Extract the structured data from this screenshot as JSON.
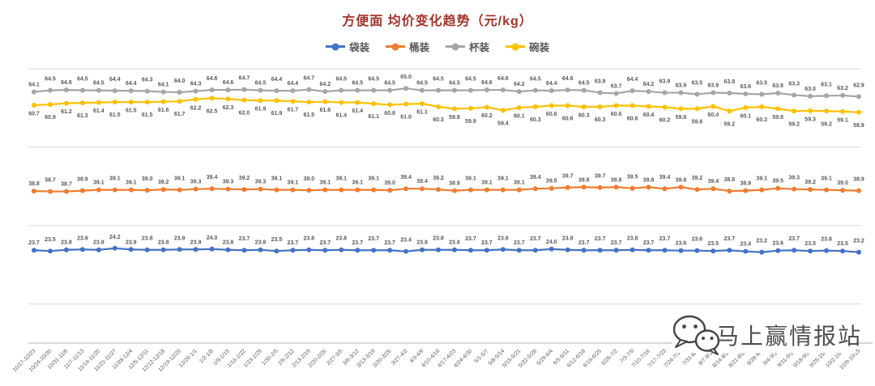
{
  "title": "方便面 均价变化趋势（元/kg）",
  "watermark": "马上赢情报站",
  "colors": {
    "title": "#A3342C",
    "data_label": "#595959",
    "gridline": "#D9D9D9",
    "axis": "#BFBFBF",
    "x_label": "#595959",
    "watermark_text": "#4F4F4F",
    "watermark_icon": "#454545"
  },
  "chart_data": {
    "type": "line",
    "title": "方便面 均价变化趋势（元/kg）",
    "ylabel": "元/kg",
    "ylim": [
      0,
      75
    ],
    "gridline_values": [
      10,
      30,
      50,
      70
    ],
    "grid": true,
    "legend_position": "top",
    "x": [
      "10/17-10/23",
      "10/24-10/30",
      "10/31-11/6",
      "11/7-11/13",
      "11/14-11/20",
      "11/21-11/27",
      "11/28-12/4",
      "12/5-12/11",
      "12/12-12/18",
      "12/19-12/25",
      "12/26-1/1",
      "1/2-1/8",
      "1/9-1/15",
      "1/16-1/22",
      "1/23-1/29",
      "1/30-2/5",
      "2/6-2/12",
      "2/13-2/19",
      "2/20-2/26",
      "2/27-3/5",
      "3/6-3/12",
      "3/13-3/19",
      "3/20-3/26",
      "3/27-4/2",
      "4/3-4/9",
      "4/10-4/16",
      "4/17-4/23",
      "4/24-4/30",
      "5/1-5/7",
      "5/8-5/14",
      "5/15-5/21",
      "5/22-5/28",
      "5/29-6/4",
      "6/5-6/11",
      "6/12-6/18",
      "6/19-6/25",
      "6/26-7/2",
      "7/3-7/9",
      "7/10-7/16",
      "7/17-7/23",
      "7/24-7/30",
      "7/31-8/6",
      "8/7-8/13",
      "8/14-8/20",
      "8/21-8/27",
      "8/28-9/3",
      "9/4-9/10",
      "9/11-9/17",
      "9/18-9/24",
      "9/25-10/1",
      "10/2-10/8",
      "10/9-10/15"
    ],
    "series": [
      {
        "name": "袋装",
        "color": "#4472C4",
        "label_position": "above",
        "values": [
          23.7,
          23.5,
          23.8,
          23.9,
          23.8,
          24.2,
          23.9,
          23.8,
          23.8,
          23.9,
          23.9,
          24.0,
          23.8,
          23.7,
          23.8,
          23.5,
          23.7,
          23.8,
          23.7,
          23.8,
          23.7,
          23.7,
          23.7,
          23.4,
          23.8,
          23.8,
          23.8,
          23.7,
          23.7,
          23.9,
          23.7,
          23.7,
          24.0,
          23.8,
          23.7,
          23.7,
          23.7,
          23.8,
          23.7,
          23.7,
          23.6,
          23.6,
          23.5,
          23.7,
          23.4,
          23.2,
          23.6,
          23.7,
          23.5,
          23.6,
          23.5,
          23.2
        ]
      },
      {
        "name": "桶装",
        "color": "#ED7D31",
        "label_position": "above",
        "values": [
          38.8,
          38.7,
          38.7,
          38.9,
          39.1,
          39.1,
          39.1,
          39.0,
          39.2,
          39.1,
          39.3,
          39.4,
          39.3,
          39.2,
          39.3,
          39.1,
          39.1,
          39.0,
          39.1,
          39.1,
          39.1,
          39.1,
          39.0,
          39.4,
          39.4,
          39.2,
          38.9,
          39.1,
          39.1,
          39.1,
          39.1,
          39.4,
          39.5,
          39.7,
          39.8,
          39.7,
          39.8,
          39.5,
          39.8,
          39.4,
          39.8,
          39.2,
          39.4,
          38.8,
          38.9,
          39.1,
          39.5,
          39.3,
          39.2,
          39.1,
          39.0,
          38.9
        ]
      },
      {
        "name": "杯装",
        "color": "#A5A5A5",
        "label_position": "above",
        "values": [
          64.1,
          64.5,
          64.6,
          64.5,
          64.5,
          64.4,
          64.4,
          64.3,
          64.1,
          64.0,
          64.3,
          64.6,
          64.6,
          64.7,
          64.5,
          64.4,
          64.4,
          64.7,
          64.2,
          64.5,
          64.5,
          64.5,
          64.5,
          65.0,
          64.5,
          64.5,
          64.5,
          64.5,
          64.6,
          64.6,
          64.2,
          64.5,
          64.4,
          64.6,
          64.5,
          63.9,
          63.7,
          64.4,
          64.2,
          63.9,
          63.9,
          63.5,
          63.9,
          63.8,
          63.6,
          63.5,
          63.8,
          63.3,
          63.0,
          63.1,
          63.2,
          62.9
        ]
      },
      {
        "name": "碗装",
        "color": "#FFC000",
        "label_position": "below",
        "values": [
          60.7,
          60.9,
          61.2,
          61.3,
          61.4,
          61.5,
          61.5,
          61.5,
          61.6,
          61.7,
          62.2,
          62.5,
          62.3,
          62.0,
          61.9,
          61.9,
          61.7,
          61.5,
          61.6,
          61.4,
          61.4,
          61.1,
          60.8,
          61.0,
          61.1,
          60.3,
          59.8,
          59.9,
          60.2,
          59.4,
          60.1,
          60.3,
          60.6,
          60.6,
          60.3,
          60.3,
          60.6,
          60.6,
          60.4,
          60.2,
          59.8,
          59.8,
          60.4,
          59.2,
          60.1,
          60.3,
          59.8,
          59.2,
          59.3,
          59.2,
          59.1,
          58.9
        ]
      }
    ]
  }
}
